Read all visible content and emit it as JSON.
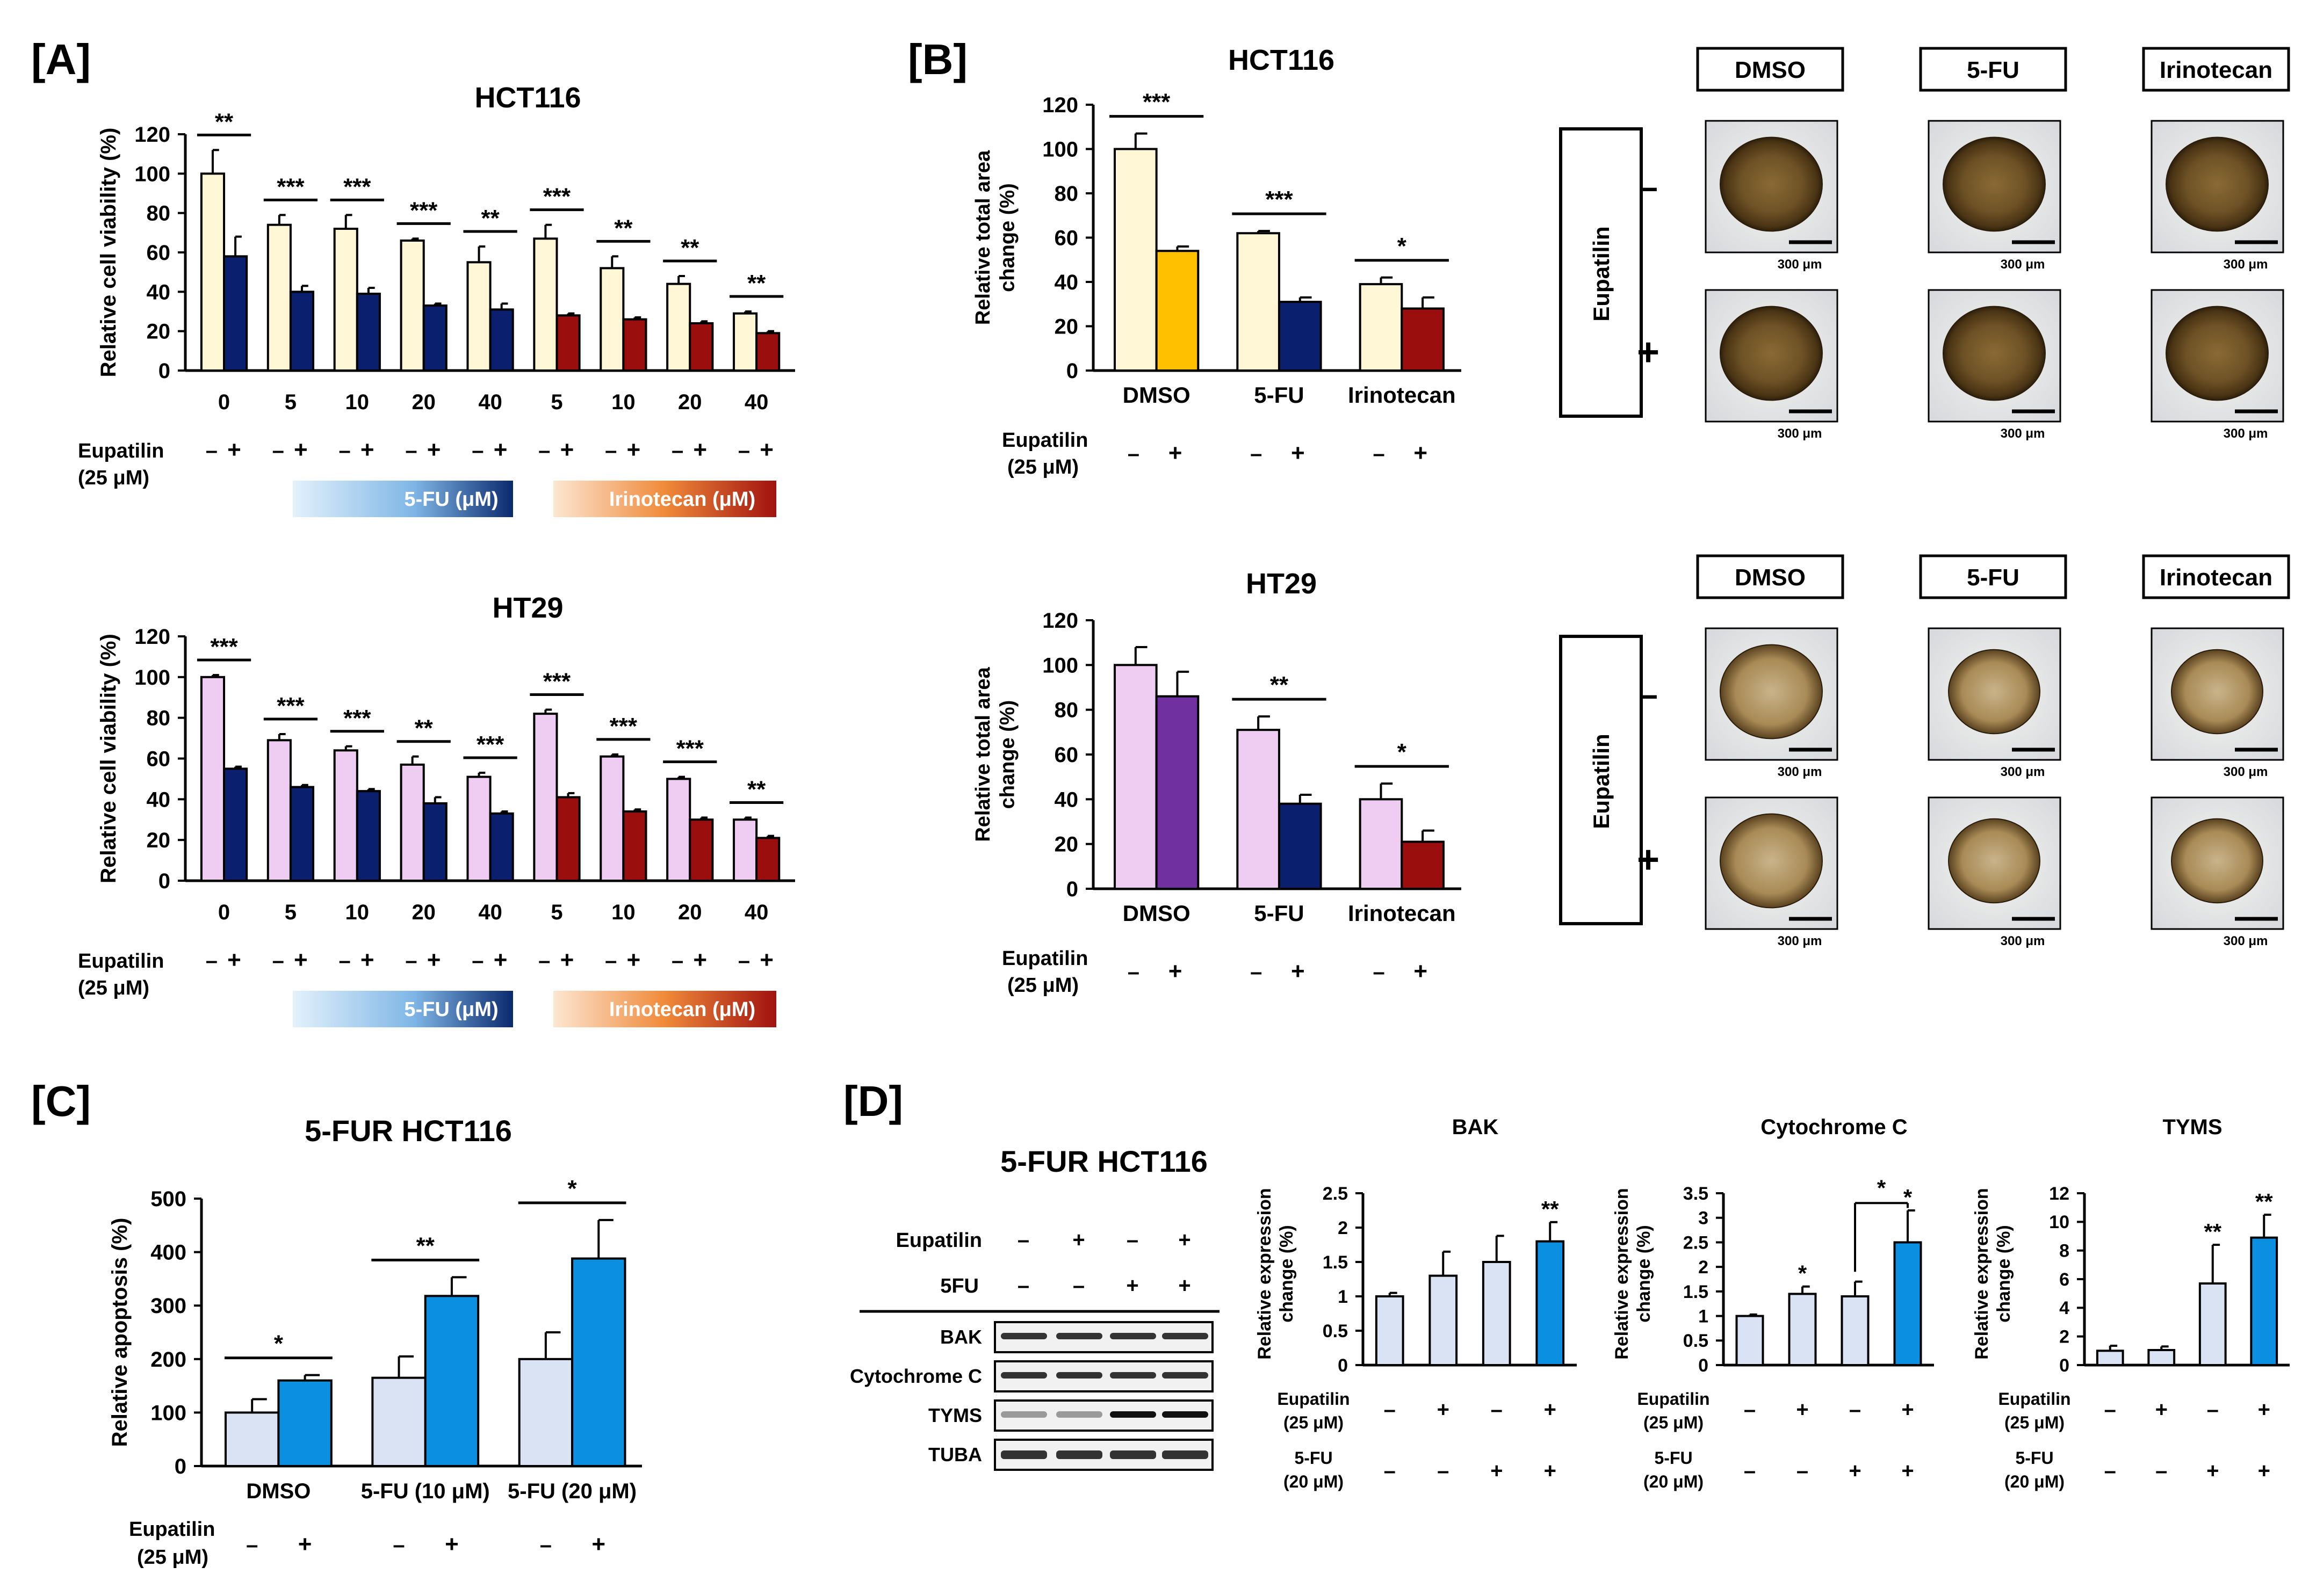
{
  "colors": {
    "cream": "#fff7d6",
    "navy": "#0a1f6e",
    "darkred": "#9b0e0e",
    "yellow": "#ffc000",
    "lilac": "#efccf2",
    "purple": "#7030a0",
    "lightblue": "#dae3f3",
    "brightblue": "#0b8fe0",
    "gradient_5fu_start": "#e3f1fb",
    "gradient_5fu_end": "#0b2a6e",
    "gradient_iri_start": "#fde6d2",
    "gradient_iri_end": "#a1120e"
  },
  "panel_labels": {
    "A": "[A]",
    "B": "[B]",
    "C": "[C]",
    "D": "[D]"
  },
  "common": {
    "eupatilin_label": "Eupatilin",
    "eupatilin_conc": "(25 μM)",
    "minus": "–",
    "plus": "+",
    "fu_bar_label": "5-FU (μM)",
    "iri_bar_label": "Irinotecan (μM)",
    "fu20_label": "5-FU",
    "fu20_conc": "(20 μM)",
    "scale_bar": "300 μm",
    "side_eupatilin": "Eupatilin"
  },
  "chart_data": [
    {
      "id": "A-HCT116",
      "type": "bar",
      "title": "HCT116",
      "ylabel": "Relative cell viability (%)",
      "ylim": [
        0,
        120
      ],
      "yticks": [
        0,
        20,
        40,
        60,
        80,
        100,
        120
      ],
      "categories": [
        "0",
        "5",
        "10",
        "20",
        "40",
        "5",
        "10",
        "20",
        "40"
      ],
      "series": [
        {
          "values": [
            100,
            74,
            72,
            66,
            55,
            67,
            52,
            44,
            29
          ],
          "errors": [
            12,
            5,
            7,
            1,
            8,
            7,
            6,
            4,
            1
          ]
        },
        {
          "values": [
            58,
            40,
            39,
            33,
            31,
            28,
            26,
            24,
            19
          ],
          "errors": [
            10,
            3,
            3,
            1,
            3,
            1,
            1,
            1,
            1
          ]
        }
      ],
      "significance": [
        "**",
        "***",
        "***",
        "***",
        "**",
        "***",
        "**",
        "**",
        "**"
      ]
    },
    {
      "id": "A-HT29",
      "type": "bar",
      "title": "HT29",
      "ylabel": "Relative cell viability (%)",
      "ylim": [
        0,
        120
      ],
      "yticks": [
        0,
        20,
        40,
        60,
        80,
        100,
        120
      ],
      "categories": [
        "0",
        "5",
        "10",
        "20",
        "40",
        "5",
        "10",
        "20",
        "40"
      ],
      "series": [
        {
          "values": [
            100,
            69,
            64,
            57,
            51,
            82,
            61,
            50,
            30
          ],
          "errors": [
            1,
            3,
            2,
            4,
            2,
            2,
            1,
            1,
            1
          ]
        },
        {
          "values": [
            55,
            46,
            44,
            38,
            33,
            41,
            34,
            30,
            21
          ],
          "errors": [
            1,
            1,
            1,
            3,
            1,
            2,
            1,
            1,
            1
          ]
        }
      ],
      "significance": [
        "***",
        "***",
        "***",
        "**",
        "***",
        "***",
        "***",
        "***",
        "**"
      ]
    },
    {
      "id": "B-HCT116",
      "type": "bar",
      "title": "HCT116",
      "ylabel": "Relative total area change (%)",
      "ylim": [
        0,
        120
      ],
      "yticks": [
        0,
        20,
        40,
        60,
        80,
        100,
        120
      ],
      "categories": [
        "DMSO",
        "5-FU",
        "Irinotecan"
      ],
      "series": [
        {
          "values": [
            100,
            62,
            39
          ],
          "errors": [
            7,
            1,
            3
          ]
        },
        {
          "values": [
            54,
            31,
            28
          ],
          "errors": [
            2,
            2,
            5
          ]
        }
      ],
      "significance": [
        "***",
        "***",
        "*"
      ]
    },
    {
      "id": "B-HT29",
      "type": "bar",
      "title": "HT29",
      "ylabel": "Relative total area change (%)",
      "ylim": [
        0,
        120
      ],
      "yticks": [
        0,
        20,
        40,
        60,
        80,
        100,
        120
      ],
      "categories": [
        "DMSO",
        "5-FU",
        "Irinotecan"
      ],
      "series": [
        {
          "values": [
            100,
            71,
            40
          ],
          "errors": [
            8,
            6,
            7
          ]
        },
        {
          "values": [
            86,
            38,
            21
          ],
          "errors": [
            11,
            4,
            5
          ]
        }
      ],
      "significance": [
        "",
        "**",
        "*"
      ]
    },
    {
      "id": "C",
      "type": "bar",
      "title": "5-FUR HCT116",
      "ylabel": "Relative apoptosis (%)",
      "ylim": [
        0,
        500
      ],
      "yticks": [
        0,
        100,
        200,
        300,
        400,
        500
      ],
      "categories": [
        "DMSO",
        "5-FU (10 μM)",
        "5-FU (20 μM)"
      ],
      "series": [
        {
          "values": [
            100,
            165,
            200
          ],
          "errors": [
            25,
            40,
            50
          ]
        },
        {
          "values": [
            160,
            318,
            388
          ],
          "errors": [
            10,
            35,
            72
          ]
        }
      ],
      "significance": [
        "*",
        "**",
        "*"
      ]
    },
    {
      "id": "D-BAK",
      "type": "bar",
      "title": "BAK",
      "ylabel": "Relative expression change (%)",
      "ylim": [
        0,
        2.5
      ],
      "yticks": [
        0,
        0.5,
        1,
        1.5,
        2,
        2.5
      ],
      "values": [
        1.0,
        1.3,
        1.5,
        1.8
      ],
      "errors": [
        0.05,
        0.35,
        0.38,
        0.28
      ],
      "marks": [
        "",
        "",
        "",
        "**"
      ]
    },
    {
      "id": "D-CytC",
      "type": "bar",
      "title": "Cytochrome C",
      "ylabel": "Relative expression change (%)",
      "ylim": [
        0,
        3.5
      ],
      "yticks": [
        0,
        0.5,
        1,
        1.5,
        2,
        2.5,
        3,
        3.5
      ],
      "values": [
        1.0,
        1.45,
        1.4,
        2.5
      ],
      "errors": [
        0.03,
        0.15,
        0.3,
        0.65
      ],
      "marks": [
        "",
        "*",
        "",
        "*"
      ],
      "bracket": "*"
    },
    {
      "id": "D-TYMS",
      "type": "bar",
      "title": "TYMS",
      "ylabel": "Relative expression change (%)",
      "ylim": [
        0,
        12
      ],
      "yticks": [
        0,
        2,
        4,
        6,
        8,
        10,
        12
      ],
      "values": [
        1.0,
        1.05,
        5.7,
        8.9
      ],
      "errors": [
        0.35,
        0.25,
        2.7,
        1.6
      ],
      "marks": [
        "",
        "",
        "**",
        "**"
      ]
    }
  ],
  "panelB_images": {
    "headers": [
      "DMSO",
      "5-FU",
      "Irinotecan"
    ],
    "row_signs": [
      "–",
      "+"
    ]
  },
  "blot": {
    "title": "5-FUR HCT116",
    "eupatilin_label": "Eupatilin",
    "fu_label": "5FU",
    "eupatilin_row": [
      "–",
      "+",
      "–",
      "+"
    ],
    "fu_row": [
      "–",
      "–",
      "+",
      "+"
    ],
    "bands": [
      "BAK",
      "Cytochrome C",
      "TYMS",
      "TUBA"
    ]
  }
}
